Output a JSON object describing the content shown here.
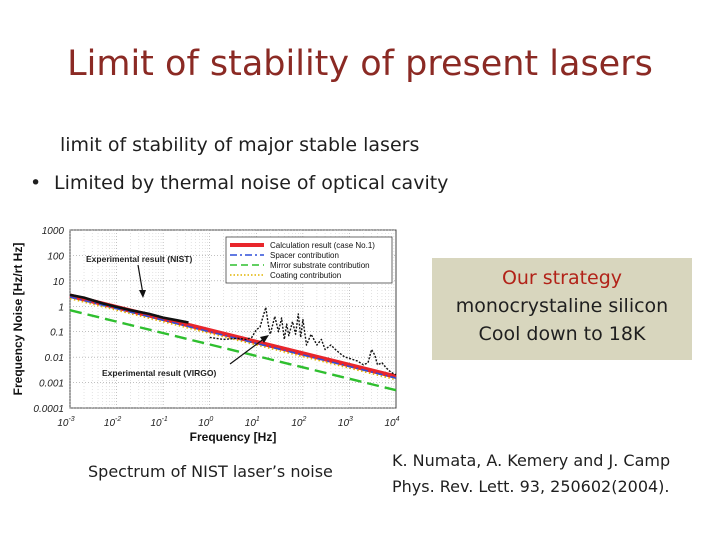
{
  "slide": {
    "title": "Limit of stability of present lasers",
    "subtitle": "limit of stability of major stable lasers",
    "bullet": "Limited by thermal noise of optical cavity",
    "strategy": [
      "Our strategy",
      "monocrystaline silicon",
      "Cool down to 18K"
    ],
    "caption": "Spectrum of  NIST laser’s noise",
    "reference": [
      "K. Numata,  A. Kemery and J. Camp",
      "Phys. Rev. Lett. 93,  250602(2004)."
    ]
  },
  "colors": {
    "title": "#8b2a24",
    "strategy_box": "#d8d6be",
    "strategy_heading": "#b22218",
    "calc": "#e8262b",
    "spacer": "#2f4fd8",
    "mirror": "#2fbf2f",
    "coating": "#e0b300",
    "experimental": "#111111"
  },
  "chart_data": {
    "type": "line",
    "xscale": "log",
    "yscale": "log",
    "xlim": [
      0.001,
      10000
    ],
    "ylim": [
      0.0001,
      1000
    ],
    "xlabel": "Frequency [Hz]",
    "ylabel": "Frequency Noise [Hz/rt Hz]",
    "x_ticks": [
      {
        "base": "10",
        "exp": "-3"
      },
      {
        "base": "10",
        "exp": "-2"
      },
      {
        "base": "10",
        "exp": "-1"
      },
      {
        "base": "10",
        "exp": "0"
      },
      {
        "base": "10",
        "exp": "1"
      },
      {
        "base": "10",
        "exp": "2"
      },
      {
        "base": "10",
        "exp": "3"
      },
      {
        "base": "10",
        "exp": "4"
      }
    ],
    "y_ticks": [
      "1000",
      "100",
      "10",
      "1",
      "0.1",
      "0.01",
      "0.001",
      "0.0001"
    ],
    "grid": true,
    "legend_position": "top-right",
    "legend": [
      {
        "name": "Calculation result (case No.1)",
        "style": "solid-thick",
        "color": "#e8262b"
      },
      {
        "name": "Spacer contribution",
        "style": "dashdot",
        "color": "#2f4fd8"
      },
      {
        "name": "Mirror substrate contribution",
        "style": "dashed",
        "color": "#2fbf2f"
      },
      {
        "name": "Coating contribution",
        "style": "dotted",
        "color": "#e0b300"
      }
    ],
    "annotations": [
      "Experimental result (NIST)",
      "Experimental result (VIRGO)"
    ],
    "series": [
      {
        "name": "Calculation result (case No.1)",
        "x": [
          0.001,
          10000
        ],
        "y": [
          2.6,
          0.0017
        ]
      },
      {
        "name": "Spacer contribution",
        "x": [
          0.001,
          10000
        ],
        "y": [
          2.3,
          0.0015
        ]
      },
      {
        "name": "Mirror substrate contribution",
        "x": [
          0.001,
          10000
        ],
        "y": [
          0.7,
          0.0005
        ]
      },
      {
        "name": "Coating contribution",
        "x": [
          0.001,
          10000
        ],
        "y": [
          2.0,
          0.0013
        ]
      },
      {
        "name": "Experimental result (NIST)",
        "x": [
          0.001,
          0.002,
          0.005,
          0.01,
          0.02,
          0.05,
          0.1,
          0.2,
          0.35
        ],
        "y": [
          2.8,
          2.2,
          1.3,
          0.95,
          0.7,
          0.5,
          0.36,
          0.28,
          0.23
        ]
      },
      {
        "name": "Experimental result (VIRGO)",
        "x": [
          1,
          2,
          4,
          6,
          8,
          10,
          12,
          14,
          16,
          18,
          20,
          25,
          30,
          35,
          40,
          45,
          50,
          60,
          70,
          80,
          90,
          100,
          120,
          150,
          200,
          250,
          300,
          400,
          500,
          600,
          700,
          800,
          1000,
          1200,
          1500,
          2000,
          2500,
          3000,
          3500,
          4000,
          5000,
          6000,
          7000,
          8000,
          10000
        ],
        "y": [
          0.06,
          0.05,
          0.055,
          0.05,
          0.06,
          0.12,
          0.15,
          0.4,
          0.9,
          0.2,
          0.08,
          0.4,
          0.1,
          0.35,
          0.05,
          0.2,
          0.07,
          0.25,
          0.08,
          0.5,
          0.06,
          0.3,
          0.03,
          0.08,
          0.03,
          0.05,
          0.02,
          0.03,
          0.02,
          0.015,
          0.012,
          0.01,
          0.009,
          0.008,
          0.007,
          0.005,
          0.006,
          0.02,
          0.012,
          0.005,
          0.006,
          0.004,
          0.003,
          0.0025,
          0.002
        ]
      }
    ]
  }
}
